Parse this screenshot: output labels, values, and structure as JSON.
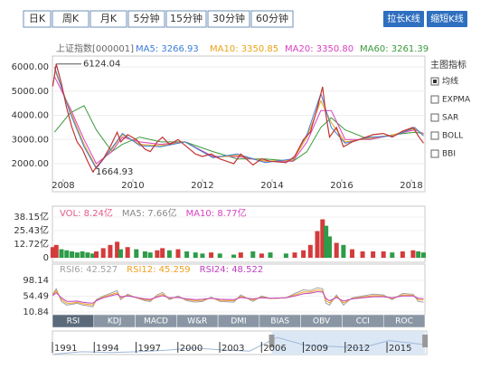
{
  "toolbar": {
    "tabs": [
      "日K",
      "周K",
      "月K",
      "5分钟",
      "15分钟",
      "30分钟",
      "60分钟"
    ],
    "selected": 1,
    "buttons": [
      "拉长K线",
      "缩短K线"
    ]
  },
  "indicator_panel": {
    "title": "主图指标",
    "options": [
      "均线",
      "EXPMA",
      "SAR",
      "BOLL",
      "BBI"
    ],
    "checked": 0
  },
  "indicator_tabs": {
    "items": [
      "RSI",
      "KDJ",
      "MACD",
      "W&R",
      "DMI",
      "BIAS",
      "OBV",
      "CCI",
      "ROC"
    ],
    "selected": 0
  },
  "chart_data": [
    {
      "type": "line",
      "title": "上证指数[000001]",
      "color": "#c23531",
      "x": [
        2007.7,
        2007.8,
        2007.95,
        2008.1,
        2008.25,
        2008.4,
        2008.55,
        2008.7,
        2008.85,
        2008.95,
        2009.15,
        2009.35,
        2009.55,
        2009.65,
        2009.85,
        2010.1,
        2010.35,
        2010.5,
        2010.7,
        2010.85,
        2011.05,
        2011.3,
        2011.55,
        2011.8,
        2012.0,
        2012.25,
        2012.5,
        2012.9,
        2013.1,
        2013.45,
        2013.7,
        2013.95,
        2014.4,
        2014.65,
        2014.9,
        2015.1,
        2015.3,
        2015.45,
        2015.55,
        2015.65,
        2015.85,
        2016.05,
        2016.3,
        2016.6,
        2016.9,
        2017.2,
        2017.45,
        2017.75,
        2018.05,
        2018.2,
        2018.35
      ],
      "values": [
        5200,
        6124.04,
        5300,
        4300,
        3500,
        2900,
        2600,
        2100,
        1664.93,
        1850,
        2200,
        2700,
        3300,
        2900,
        3200,
        3000,
        2600,
        2500,
        2900,
        3100,
        2800,
        3000,
        2700,
        2400,
        2300,
        2400,
        2200,
        2000,
        2400,
        1950,
        2200,
        2100,
        2050,
        2300,
        3000,
        3300,
        4300,
        5178,
        4000,
        3100,
        3500,
        2700,
        2900,
        3050,
        3200,
        3250,
        3100,
        3350,
        3500,
        3150,
        2850
      ],
      "high": 6124.04,
      "low": 1664.93,
      "series": [
        {
          "name": "MA5: 3266.93",
          "color": "#3b7dd8",
          "x": [
            2007.75,
            2008.2,
            2008.6,
            2008.95,
            2009.4,
            2009.7,
            2010.2,
            2010.8,
            2011.5,
            2012.3,
            2013.0,
            2013.8,
            2014.6,
            2015.0,
            2015.4,
            2015.7,
            2016.1,
            2016.8,
            2017.5,
            2018.1,
            2018.35
          ],
          "values": [
            6000,
            4100,
            2700,
            1800,
            2650,
            3250,
            2750,
            2700,
            2900,
            2250,
            2400,
            2050,
            2200,
            3200,
            4900,
            3500,
            2850,
            3100,
            3150,
            3500,
            3150
          ]
        },
        {
          "name": "MA10: 3350.85",
          "color": "#e8a317",
          "x": [
            2007.75,
            2008.2,
            2008.6,
            2008.95,
            2009.4,
            2009.7,
            2010.2,
            2010.8,
            2011.5,
            2012.3,
            2013.0,
            2013.8,
            2014.6,
            2015.0,
            2015.4,
            2015.7,
            2016.1,
            2016.8,
            2017.5,
            2018.1,
            2018.35
          ],
          "values": [
            5900,
            4200,
            2800,
            1850,
            2600,
            3200,
            2800,
            2750,
            2900,
            2250,
            2350,
            2100,
            2150,
            3100,
            4600,
            3700,
            2900,
            3050,
            3200,
            3450,
            3200
          ]
        },
        {
          "name": "MA20: 3350.80",
          "color": "#d83fbf",
          "x": [
            2007.75,
            2008.2,
            2008.6,
            2008.95,
            2009.4,
            2009.7,
            2010.2,
            2010.8,
            2011.5,
            2012.3,
            2013.0,
            2013.8,
            2014.6,
            2015.0,
            2015.4,
            2015.7,
            2016.1,
            2016.8,
            2017.5,
            2018.1,
            2018.35
          ],
          "values": [
            5600,
            4300,
            3000,
            2000,
            2500,
            3100,
            2900,
            2800,
            2900,
            2300,
            2300,
            2100,
            2100,
            2900,
            4200,
            4200,
            3000,
            3000,
            3200,
            3400,
            3250
          ]
        },
        {
          "name": "MA60: 3261.39",
          "color": "#3a9a3a",
          "x": [
            2007.75,
            2008.2,
            2008.6,
            2008.95,
            2009.4,
            2009.7,
            2010.2,
            2010.8,
            2011.5,
            2012.3,
            2013.0,
            2013.8,
            2014.6,
            2015.0,
            2015.4,
            2015.7,
            2016.1,
            2016.8,
            2017.5,
            2018.1,
            2018.35
          ],
          "values": [
            3300,
            4100,
            4400,
            3400,
            2500,
            2800,
            3100,
            2900,
            2900,
            2500,
            2200,
            2200,
            2100,
            2500,
            3500,
            3900,
            3400,
            3000,
            3200,
            3300,
            3250
          ]
        }
      ],
      "xlim": [
        2007.69,
        2018.39
      ],
      "xticks": [
        2008,
        2010,
        2012,
        2014,
        2016,
        2018
      ],
      "ylim": [
        1365,
        6450
      ],
      "yticks": [
        {
          "value": 2000,
          "label": "2000.00"
        },
        {
          "value": 3000,
          "label": "3000.00"
        },
        {
          "value": 4000,
          "label": "4000.00"
        },
        {
          "value": 5000,
          "label": "5000.00"
        },
        {
          "value": 6000,
          "label": "6000.00"
        }
      ],
      "grid": true
    },
    {
      "type": "bar",
      "up_color": "#d43b3b",
      "down_color": "#2e9b48",
      "legend": [
        {
          "text": "VOL: 8.24亿",
          "color": "#e05a8a"
        },
        {
          "text": "MA5: 7.66亿",
          "color": "#888888"
        },
        {
          "text": "MA10: 8.77亿",
          "color": "#d83fbf"
        }
      ],
      "values": [
        10,
        12,
        8,
        7,
        6,
        5,
        6,
        5,
        4,
        6,
        9,
        12,
        15,
        8,
        10,
        8,
        6,
        5,
        7,
        9,
        7,
        8,
        6,
        5,
        4,
        5,
        4,
        3,
        5,
        6,
        4,
        5,
        4,
        5,
        7,
        12,
        25,
        36,
        30,
        20,
        14,
        12,
        8,
        6,
        6,
        6,
        5,
        6,
        7,
        6,
        5
      ],
      "ylim": [
        -2.5,
        46.6
      ],
      "yticks": [
        {
          "value": 0,
          "label": "0"
        },
        {
          "value": 12.72,
          "label": "12.72亿"
        },
        {
          "value": 25.43,
          "label": "25.43亿"
        },
        {
          "value": 38.15,
          "label": "38.15亿"
        }
      ]
    },
    {
      "type": "line",
      "series": [
        {
          "name": "RSI6: 42.527",
          "color": "#a0a0a0",
          "values": [
            60,
            75,
            40,
            30,
            32,
            35,
            30,
            28,
            25,
            45,
            55,
            62,
            70,
            45,
            60,
            50,
            42,
            40,
            58,
            65,
            45,
            55,
            42,
            38,
            40,
            52,
            40,
            38,
            58,
            40,
            55,
            48,
            50,
            62,
            72,
            70,
            78,
            75,
            35,
            30,
            58,
            30,
            50,
            55,
            60,
            58,
            45,
            62,
            60,
            40,
            38
          ]
        },
        {
          "name": "RSI12: 45.259",
          "color": "#f0a020",
          "values": [
            58,
            70,
            45,
            35,
            35,
            38,
            34,
            32,
            30,
            42,
            52,
            58,
            64,
            50,
            57,
            50,
            45,
            43,
            54,
            60,
            48,
            52,
            45,
            42,
            43,
            50,
            43,
            42,
            54,
            44,
            52,
            48,
            50,
            58,
            66,
            66,
            72,
            70,
            42,
            36,
            54,
            36,
            48,
            52,
            56,
            55,
            48,
            58,
            57,
            45,
            44
          ]
        },
        {
          "name": "RSI24: 48.522",
          "color": "#c040c0",
          "values": [
            56,
            64,
            50,
            40,
            40,
            41,
            38,
            36,
            35,
            42,
            50,
            55,
            60,
            53,
            55,
            51,
            47,
            46,
            52,
            56,
            50,
            51,
            47,
            45,
            46,
            49,
            46,
            45,
            51,
            47,
            50,
            49,
            50,
            55,
            61,
            63,
            67,
            66,
            48,
            42,
            51,
            41,
            47,
            50,
            53,
            53,
            50,
            55,
            55,
            49,
            48
          ]
        }
      ],
      "ylim": [
        3.4,
        123
      ],
      "yticks": [
        10.84,
        54.49,
        98.14
      ]
    },
    {
      "type": "area",
      "color": "#9fb8d8",
      "x": [
        1991,
        1993,
        1995,
        1997,
        1999,
        2001,
        2003,
        2005,
        2007,
        2009,
        2011,
        2013,
        2015,
        2017.6
      ],
      "values": [
        150,
        900,
        650,
        900,
        1400,
        2100,
        1500,
        1100,
        5500,
        3000,
        2600,
        2100,
        4500,
        3200
      ],
      "ylim": [
        0,
        7000
      ],
      "xlim": [
        1990.87,
        2017.72
      ],
      "xticks": [
        1991,
        1994,
        1997,
        2000,
        2003,
        2006,
        2009,
        2012,
        2015
      ],
      "selection": [
        2006.6,
        2017.6
      ]
    }
  ]
}
